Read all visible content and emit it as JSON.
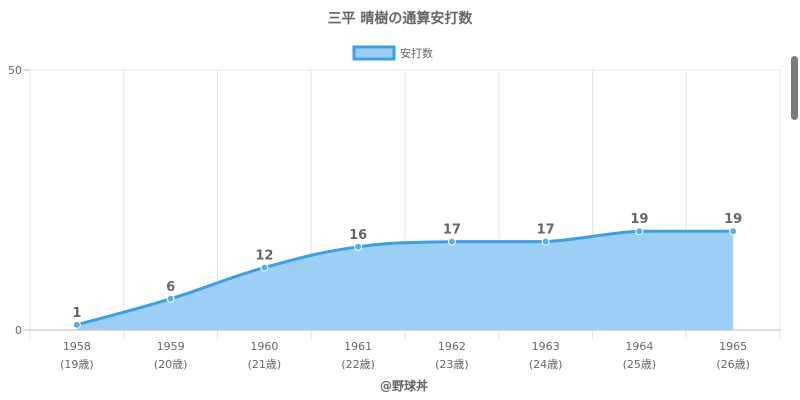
{
  "chart_data": {
    "type": "area",
    "title": "三平 晴樹の通算安打数",
    "xlabel": "@野球丼",
    "ylabel": "",
    "categories": [
      "1958",
      "1959",
      "1960",
      "1961",
      "1962",
      "1963",
      "1964",
      "1965"
    ],
    "sublabels": [
      "(19歳)",
      "(20歳)",
      "(21歳)",
      "(22歳)",
      "(23歳)",
      "(24歳)",
      "(25歳)",
      "(26歳)"
    ],
    "series": [
      {
        "name": "安打数",
        "values": [
          1,
          6,
          12,
          16,
          17,
          17,
          19,
          19
        ]
      }
    ],
    "ylim": [
      0,
      50
    ],
    "yticks": [
      "0",
      "50"
    ],
    "legend": "top-center",
    "grid": true,
    "colors": {
      "line": "#3d9fe3",
      "fill": "#9ccff6",
      "point": "#5aaee8",
      "grid": "#e6e6e6",
      "axis": "#bdbdbd",
      "text": "#666666"
    }
  }
}
